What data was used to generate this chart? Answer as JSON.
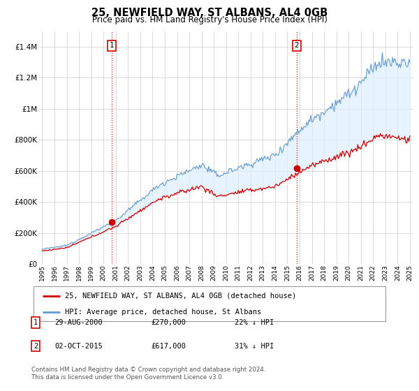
{
  "title": "25, NEWFIELD WAY, ST ALBANS, AL4 0GB",
  "subtitle": "Price paid vs. HM Land Registry's House Price Index (HPI)",
  "ylim": [
    0,
    1500000
  ],
  "yticks": [
    0,
    200000,
    400000,
    600000,
    800000,
    1000000,
    1200000,
    1400000
  ],
  "ytick_labels": [
    "£0",
    "£200K",
    "£400K",
    "£600K",
    "£800K",
    "£1M",
    "£1.2M",
    "£1.4M"
  ],
  "xlim_left": 1994.7,
  "xlim_right": 2025.3,
  "sale1_x": 2000.66,
  "sale1_y": 270000,
  "sale1_label": "1",
  "sale2_x": 2015.75,
  "sale2_y": 617000,
  "sale2_label": "2",
  "red_color": "#cc0000",
  "blue_color": "#6699cc",
  "blue_fill_color": "#ddeeff",
  "vline_color": "#cc0000",
  "vline_style": ":",
  "legend_line1": "25, NEWFIELD WAY, ST ALBANS, AL4 0GB (detached house)",
  "legend_line2": "HPI: Average price, detached house, St Albans",
  "table_row1": [
    "1",
    "29-AUG-2000",
    "£270,000",
    "22% ↓ HPI"
  ],
  "table_row2": [
    "2",
    "02-OCT-2015",
    "£617,000",
    "31% ↓ HPI"
  ],
  "footer": "Contains HM Land Registry data © Crown copyright and database right 2024.\nThis data is licensed under the Open Government Licence v3.0.",
  "background_color": "#ffffff",
  "grid_color": "#cccccc"
}
